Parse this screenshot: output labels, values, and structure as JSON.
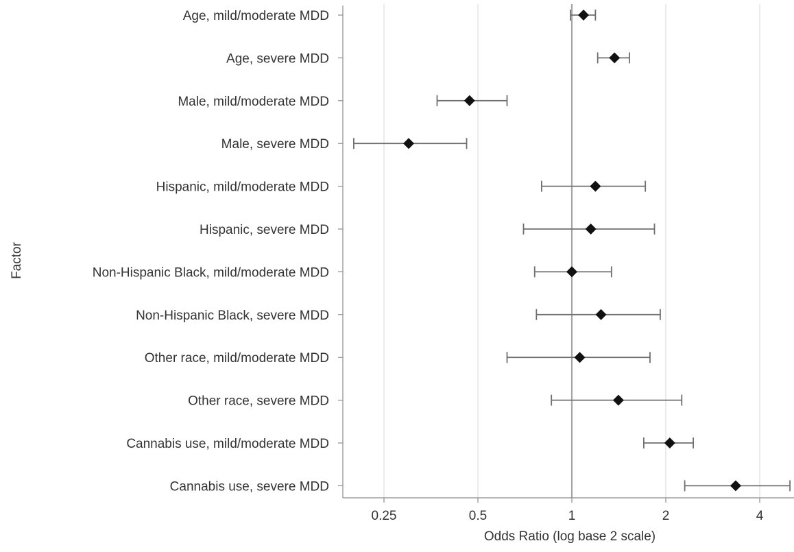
{
  "chart_data": {
    "type": "scatter",
    "subtype": "forest-plot",
    "xlabel": "Odds Ratio (log base 2 scale)",
    "ylabel": "Factor",
    "x_scale": "log2",
    "xlim": [
      0.18,
      5.0
    ],
    "x_ticks": [
      0.25,
      0.5,
      1,
      2,
      4
    ],
    "x_tick_labels": [
      "0.25",
      "0.5",
      "1",
      "2",
      "4"
    ],
    "reference_line": 1,
    "grid": "vertical",
    "marker": "diamond",
    "categories": [
      "Age, mild/moderate MDD",
      "Age, severe MDD",
      "Male, mild/moderate MDD",
      "Male, severe MDD",
      "Hispanic, mild/moderate MDD",
      "Hispanic, severe MDD",
      "Non-Hispanic Black, mild/moderate MDD",
      "Non-Hispanic Black, severe MDD",
      "Other race, mild/moderate MDD",
      "Other race, severe MDD",
      "Cannabis use, mild/moderate MDD",
      "Cannabis use, severe MDD"
    ],
    "values": [
      1.09,
      1.37,
      0.47,
      0.3,
      1.19,
      1.15,
      1.0,
      1.24,
      1.06,
      1.41,
      2.06,
      3.35
    ],
    "ci_lower": [
      0.99,
      1.21,
      0.37,
      0.2,
      0.8,
      0.7,
      0.76,
      0.77,
      0.62,
      0.86,
      1.7,
      2.3
    ],
    "ci_upper": [
      1.19,
      1.53,
      0.62,
      0.46,
      1.72,
      1.84,
      1.34,
      1.92,
      1.78,
      2.25,
      2.45,
      5.0
    ]
  }
}
